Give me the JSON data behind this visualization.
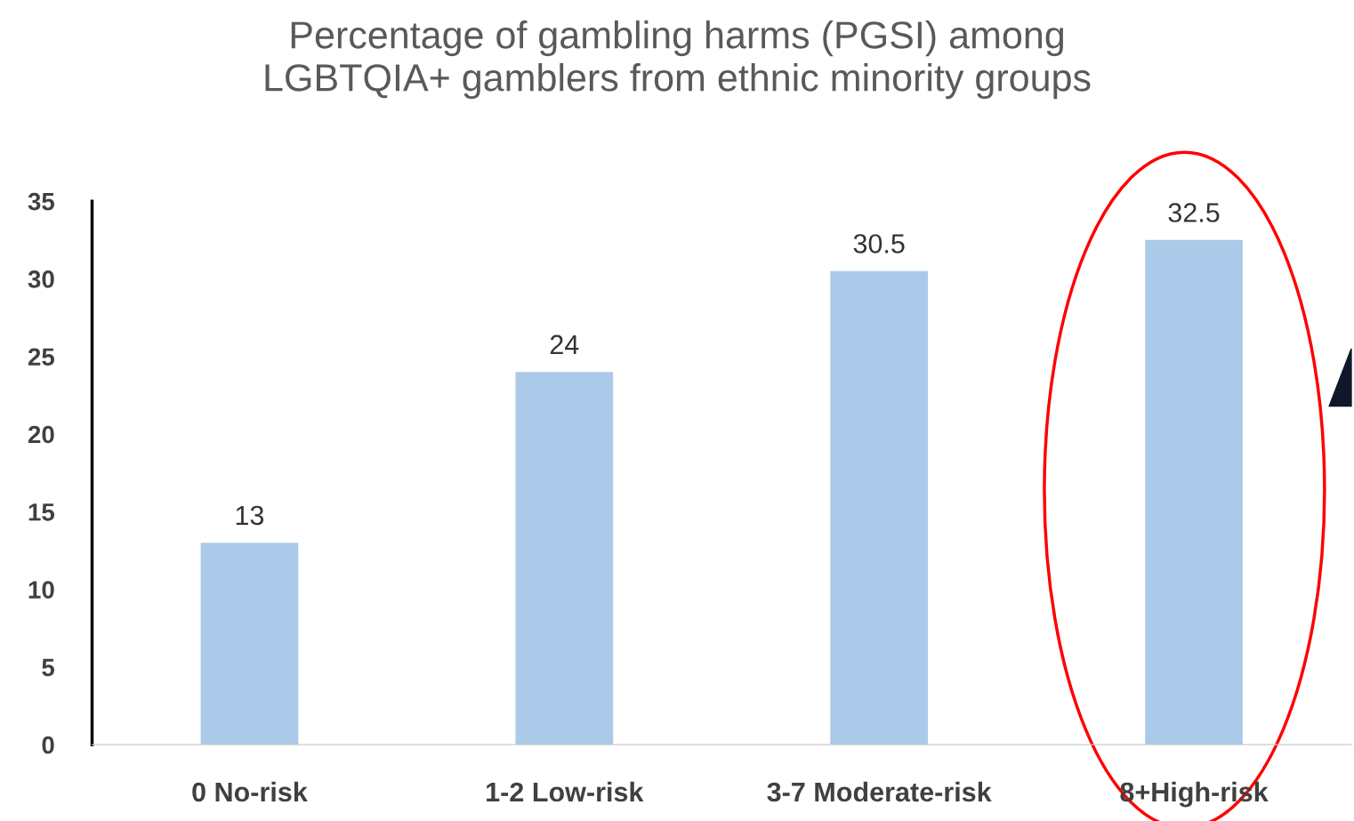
{
  "chart_data": {
    "type": "bar",
    "title": "Percentage of gambling harms (PGSI) among\nLGBTQIA+ gamblers from ethnic minority groups",
    "categories": [
      "0 No-risk",
      "1-2 Low-risk",
      "3-7 Moderate-risk",
      "8+High-risk"
    ],
    "values": [
      13,
      24,
      30.5,
      32.5
    ],
    "color": "#abc9e9",
    "ylim": [
      0,
      35
    ],
    "yticks": [
      0,
      5,
      10,
      15,
      20,
      25,
      30,
      35
    ],
    "grid": false,
    "data_labels": true
  }
}
